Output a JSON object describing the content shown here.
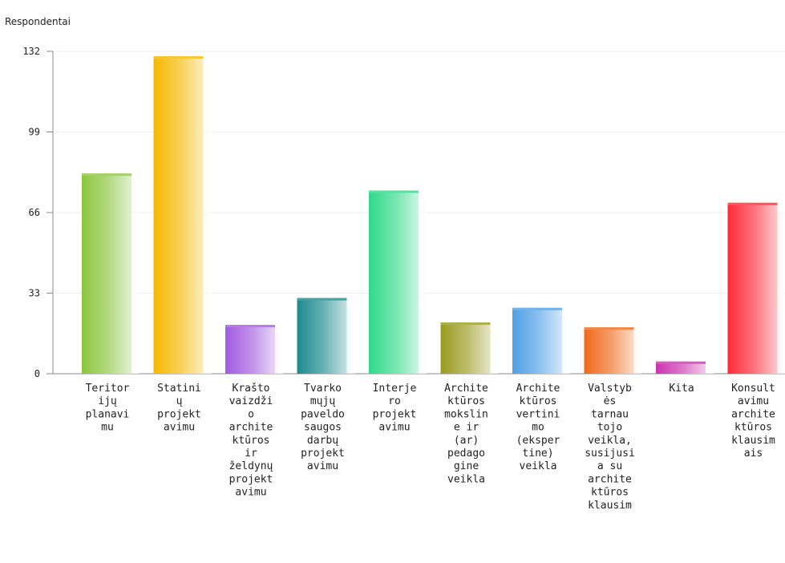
{
  "chart_data": {
    "type": "bar",
    "title": "",
    "xlabel": "",
    "ylabel": "Respondentai",
    "ylim": [
      0,
      132
    ],
    "yticks": [
      0,
      33,
      66,
      99,
      132
    ],
    "grid": true,
    "categories": [
      [
        "Teritor",
        "ijų",
        "planavi",
        "mu"
      ],
      [
        "Statini",
        "ų",
        "projekt",
        "avimu"
      ],
      [
        "Krašto",
        "vaizdži",
        "o",
        "archite",
        "ktūros",
        "ir",
        "želdynų",
        "projekt",
        "avimu"
      ],
      [
        "Tvarko",
        "mųjų",
        "paveldo",
        "saugos",
        "darbų",
        "projekt",
        "avimu"
      ],
      [
        "Interje",
        "ro",
        "projekt",
        "avimu"
      ],
      [
        "Archite",
        "ktūros",
        "mokslin",
        "e ir",
        "(ar)",
        "pedago",
        "gine",
        "veikla"
      ],
      [
        "Archite",
        "ktūros",
        "vertini",
        "mo",
        "(eksper",
        "tine)",
        "veikla"
      ],
      [
        "Valstyb",
        "ės",
        "tarnau",
        "tojo",
        "veikla,",
        "susijusi",
        "a su",
        "archite",
        "ktūros",
        "klausim"
      ],
      [
        "Kita"
      ],
      [
        "Konsult",
        "avimu",
        "archite",
        "ktūros",
        "klausim",
        "ais"
      ]
    ],
    "values": [
      82,
      130,
      20,
      31,
      75,
      21,
      27,
      19,
      5,
      70
    ],
    "colors": [
      "#8cc63f",
      "#f5b800",
      "#a35ae0",
      "#1c8a8f",
      "#2fd98a",
      "#999b1f",
      "#4ea0e6",
      "#ef6a1a",
      "#cc33b0",
      "#ff2a3a"
    ]
  }
}
